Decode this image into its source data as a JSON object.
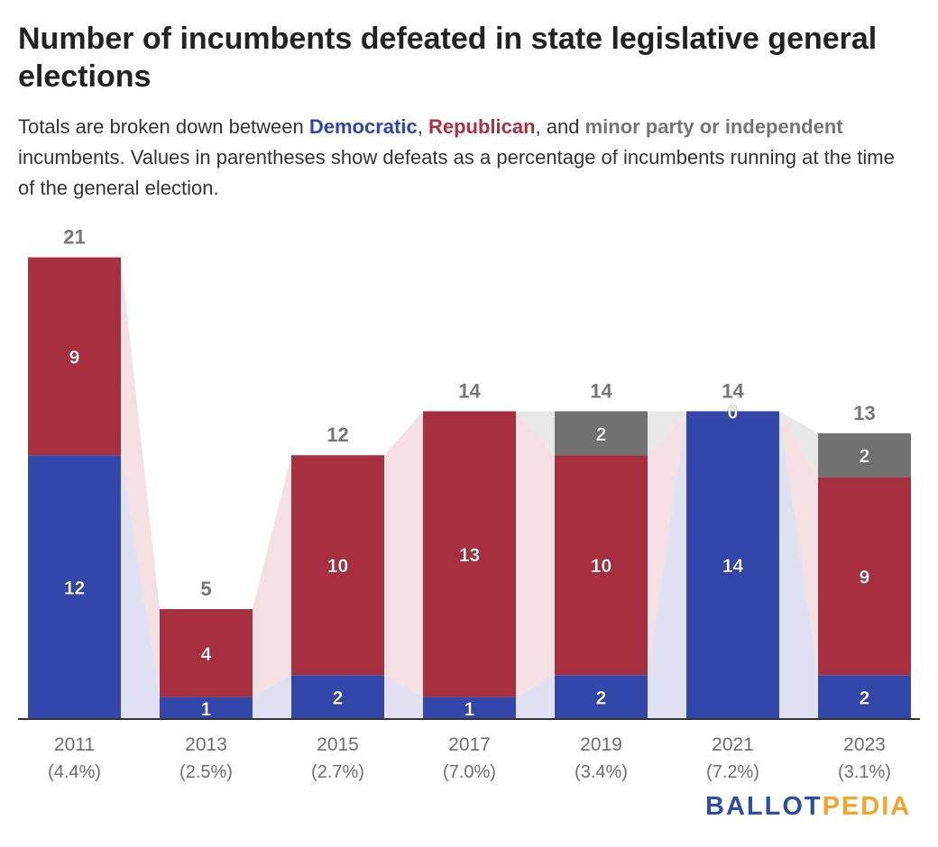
{
  "title": "Number of incumbents defeated in state legislative general elections",
  "subtitle": {
    "prefix": "Totals are broken down between ",
    "dem": "Democratic",
    "sep1": ", ",
    "rep": "Republican",
    "sep2": ", and ",
    "other": "minor party or independent",
    "suffix": " incumbents. Values in parentheses show defeats as a percentage of incumbents running at the time of the general election."
  },
  "logo": {
    "part1": "BALLOT",
    "part2": "PEDIA"
  },
  "colors": {
    "dem": "#3347ab",
    "rep": "#a82f3f",
    "other": "#717171",
    "dem_band": "#dfe1f2",
    "rep_band": "#f4dfe2",
    "other_band": "#e7e7e7"
  },
  "chart_data": {
    "type": "bar",
    "stacked": true,
    "categories": [
      "2011",
      "2013",
      "2015",
      "2017",
      "2019",
      "2021",
      "2023"
    ],
    "sublabels": [
      "(4.4%)",
      "(2.5%)",
      "(2.7%)",
      "(7.0%)",
      "(3.4%)",
      "(7.2%)",
      "(3.1%)"
    ],
    "series": [
      {
        "name": "Democratic",
        "values": [
          12,
          1,
          2,
          1,
          2,
          14,
          2
        ]
      },
      {
        "name": "Republican",
        "values": [
          9,
          4,
          10,
          13,
          10,
          0,
          9
        ]
      },
      {
        "name": "minor party or independent",
        "values": [
          0,
          0,
          0,
          0,
          2,
          0,
          2
        ]
      }
    ],
    "totals": [
      21,
      5,
      12,
      14,
      14,
      14,
      13
    ],
    "segment_labels": [
      [
        "12",
        "9",
        ""
      ],
      [
        "1",
        "4",
        ""
      ],
      [
        "2",
        "10",
        ""
      ],
      [
        "1",
        "13",
        ""
      ],
      [
        "2",
        "10",
        "2"
      ],
      [
        "14",
        "0",
        ""
      ],
      [
        "2",
        "9",
        "2"
      ]
    ],
    "ylim": [
      0,
      21
    ],
    "grid": false,
    "legend": "none"
  }
}
